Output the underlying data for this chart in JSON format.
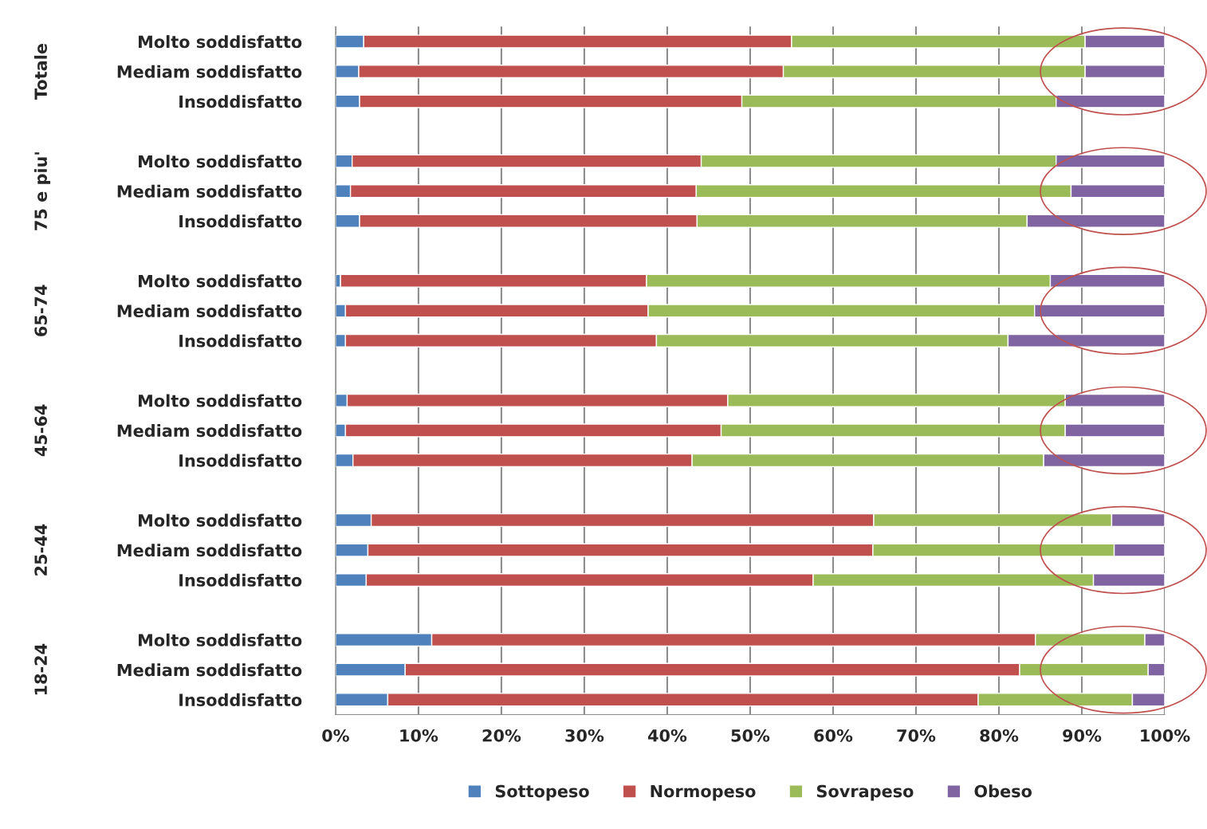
{
  "chart_data": {
    "type": "bar",
    "orientation": "horizontal",
    "stacked": true,
    "categories": [
      "Molto soddisfatto",
      "Mediam soddisfatto",
      "Insoddisfatto",
      null,
      "Molto soddisfatto",
      "Mediam soddisfatto",
      "Insoddisfatto",
      null,
      "Molto soddisfatto",
      "Mediam soddisfatto",
      "Insoddisfatto",
      null,
      "Molto soddisfatto",
      "Mediam soddisfatto",
      "Insoddisfatto",
      null,
      "Molto soddisfatto",
      "Mediam soddisfatto",
      "Insoddisfatto",
      null,
      "Molto soddisfatto",
      "Mediam soddisfatto",
      "Insoddisfatto"
    ],
    "series": [
      {
        "name": "Sottopeso",
        "color": "#4f81bd",
        "values": [
          3.4,
          2.8,
          2.9,
          null,
          2.0,
          1.8,
          2.9,
          null,
          0.6,
          1.2,
          1.2,
          null,
          1.4,
          1.2,
          2.1,
          null,
          4.3,
          3.9,
          3.7,
          null,
          11.6,
          8.4,
          6.3
        ]
      },
      {
        "name": "Normopeso",
        "color": "#c0504d",
        "values": [
          51.6,
          51.2,
          46.1,
          null,
          42.1,
          41.7,
          40.7,
          null,
          36.9,
          36.5,
          37.5,
          null,
          45.9,
          45.3,
          40.9,
          null,
          60.6,
          60.9,
          53.9,
          null,
          72.8,
          74.1,
          71.2
        ]
      },
      {
        "name": "Sovrapeso",
        "color": "#9bbb59",
        "values": [
          35.4,
          36.4,
          37.9,
          null,
          42.8,
          45.2,
          39.8,
          null,
          48.7,
          46.6,
          42.4,
          null,
          40.7,
          41.5,
          42.4,
          null,
          28.7,
          29.1,
          33.8,
          null,
          13.2,
          15.5,
          18.6
        ]
      },
      {
        "name": "Obeso",
        "color": "#8064a2",
        "values": [
          9.6,
          9.6,
          13.1,
          null,
          13.1,
          11.3,
          16.6,
          null,
          13.8,
          15.7,
          18.9,
          null,
          12.0,
          12.0,
          14.6,
          null,
          6.4,
          6.1,
          8.6,
          null,
          2.4,
          2.0,
          3.9
        ]
      }
    ],
    "annotations": [
      "Totale",
      "75 e piu'",
      "65-74",
      "45-64",
      "25-44",
      "18-24"
    ],
    "xlim": [
      0,
      100
    ],
    "xticks": [
      {
        "value": 0,
        "label": "0%"
      },
      {
        "value": 10,
        "label": "10%"
      },
      {
        "value": 20,
        "label": "20%"
      },
      {
        "value": 30,
        "label": "30%"
      },
      {
        "value": 40,
        "label": "40%"
      },
      {
        "value": 50,
        "label": "50%"
      },
      {
        "value": 60,
        "label": "60%"
      },
      {
        "value": 70,
        "label": "70%"
      },
      {
        "value": 80,
        "label": "80%"
      },
      {
        "value": 90,
        "label": "90%"
      },
      {
        "value": 100,
        "label": "100%"
      }
    ],
    "grid": "x",
    "legend": "bottom"
  }
}
